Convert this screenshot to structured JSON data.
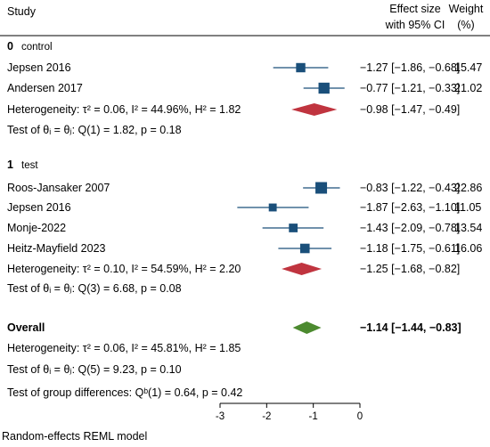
{
  "header": {
    "study": "Study",
    "effect_line1": "Effect size",
    "effect_line2": "with 95% CI",
    "weight_line1": "Weight",
    "weight_line2": "(%)"
  },
  "chart_data": {
    "type": "forest",
    "xlim": [
      -3,
      0
    ],
    "xticks": [
      "-3",
      "-2",
      "-1",
      "0"
    ],
    "footnote": "Random-effects REML model",
    "colors": {
      "study": "#1a4f7a",
      "subgroup": "#c0343f",
      "overall": "#4c8a2f"
    },
    "groups": [
      {
        "id": "0",
        "label": "control",
        "studies": [
          {
            "name": "Jepsen 2016",
            "es": -1.27,
            "lo": -1.86,
            "hi": -0.68,
            "ci": "−1.27 [−1.86, −0.68]",
            "weight": "15.47"
          },
          {
            "name": "Andersen 2017",
            "es": -0.77,
            "lo": -1.21,
            "hi": -0.33,
            "ci": "−0.77 [−1.21, −0.33]",
            "weight": "21.02"
          }
        ],
        "summary": {
          "es": -0.98,
          "lo": -1.47,
          "hi": -0.49,
          "ci": "−0.98 [−1.47, −0.49]"
        },
        "het_text": "Heterogeneity: τ² = 0.06, I² = 44.96%, H² = 1.82",
        "test_text": "Test of θᵢ = θⱼ: Q(1) = 1.82, p = 0.18"
      },
      {
        "id": "1",
        "label": "test",
        "studies": [
          {
            "name": "Roos-Jansaker 2007",
            "es": -0.83,
            "lo": -1.22,
            "hi": -0.43,
            "ci": "−0.83 [−1.22, −0.43]",
            "weight": "22.86"
          },
          {
            "name": "Jepsen 2016",
            "es": -1.87,
            "lo": -2.63,
            "hi": -1.1,
            "ci": "−1.87 [−2.63, −1.10]",
            "weight": "11.05"
          },
          {
            "name": "Monje-2022",
            "es": -1.43,
            "lo": -2.09,
            "hi": -0.78,
            "ci": "−1.43 [−2.09, −0.78]",
            "weight": "13.54"
          },
          {
            "name": "Heitz-Mayfield 2023",
            "es": -1.18,
            "lo": -1.75,
            "hi": -0.61,
            "ci": "−1.18 [−1.75, −0.61]",
            "weight": "16.06"
          }
        ],
        "summary": {
          "es": -1.25,
          "lo": -1.68,
          "hi": -0.82,
          "ci": "−1.25 [−1.68, −0.82]"
        },
        "het_text": "Heterogeneity: τ² = 0.10, I² = 54.59%, H² = 2.20",
        "test_text": "Test of θᵢ = θⱼ: Q(3) = 6.68, p = 0.08"
      }
    ],
    "overall": {
      "label": "Overall",
      "es": -1.14,
      "lo": -1.44,
      "hi": -0.83,
      "ci": "−1.14 [−1.44, −0.83]",
      "het_text": "Heterogeneity: τ² = 0.06, I² = 45.81%, H² = 1.85",
      "test_text": "Test of θᵢ = θⱼ: Q(5) = 9.23, p = 0.10"
    },
    "group_diff_text": "Test of group differences: Qᵇ(1) = 0.64, p = 0.42"
  }
}
